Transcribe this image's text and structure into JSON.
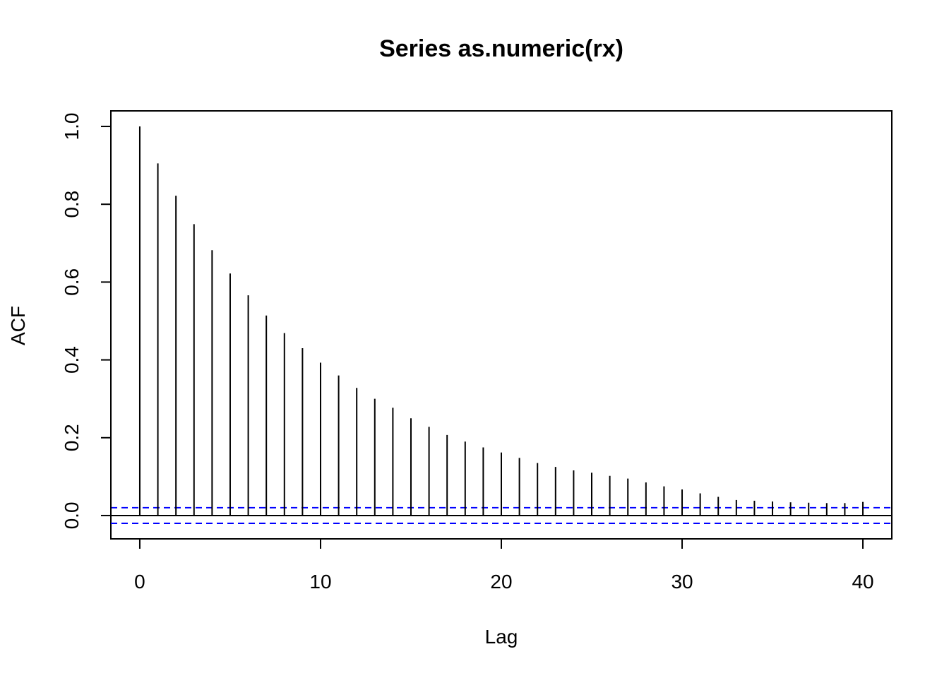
{
  "chart_data": {
    "type": "bar",
    "title": "Series  as.numeric(rx)",
    "xlabel": "Lag",
    "ylabel": "ACF",
    "xlim": [
      -1.6,
      41.6
    ],
    "ylim": [
      -0.06,
      1.04
    ],
    "x_ticks": [
      0,
      10,
      20,
      30,
      40
    ],
    "x_tick_labels": [
      "0",
      "10",
      "20",
      "30",
      "40"
    ],
    "y_ticks": [
      0.0,
      0.2,
      0.4,
      0.6,
      0.8,
      1.0
    ],
    "y_tick_labels": [
      "0.0",
      "0.2",
      "0.4",
      "0.6",
      "0.8",
      "1.0"
    ],
    "grid": false,
    "confidence_bounds": [
      0.02,
      -0.02
    ],
    "colors": {
      "bars": "#000000",
      "bounds": "#0000ff",
      "frame": "#000000"
    },
    "lags": [
      0,
      1,
      2,
      3,
      4,
      5,
      6,
      7,
      8,
      9,
      10,
      11,
      12,
      13,
      14,
      15,
      16,
      17,
      18,
      19,
      20,
      21,
      22,
      23,
      24,
      25,
      26,
      27,
      28,
      29,
      30,
      31,
      32,
      33,
      34,
      35,
      36,
      37,
      38,
      39,
      40
    ],
    "acf": [
      1.0,
      0.905,
      0.822,
      0.749,
      0.682,
      0.622,
      0.566,
      0.514,
      0.469,
      0.43,
      0.393,
      0.36,
      0.328,
      0.3,
      0.277,
      0.25,
      0.228,
      0.207,
      0.19,
      0.175,
      0.162,
      0.148,
      0.135,
      0.125,
      0.116,
      0.11,
      0.102,
      0.095,
      0.085,
      0.075,
      0.067,
      0.057,
      0.048,
      0.04,
      0.038,
      0.036,
      0.034,
      0.033,
      0.032,
      0.032,
      0.035
    ]
  }
}
